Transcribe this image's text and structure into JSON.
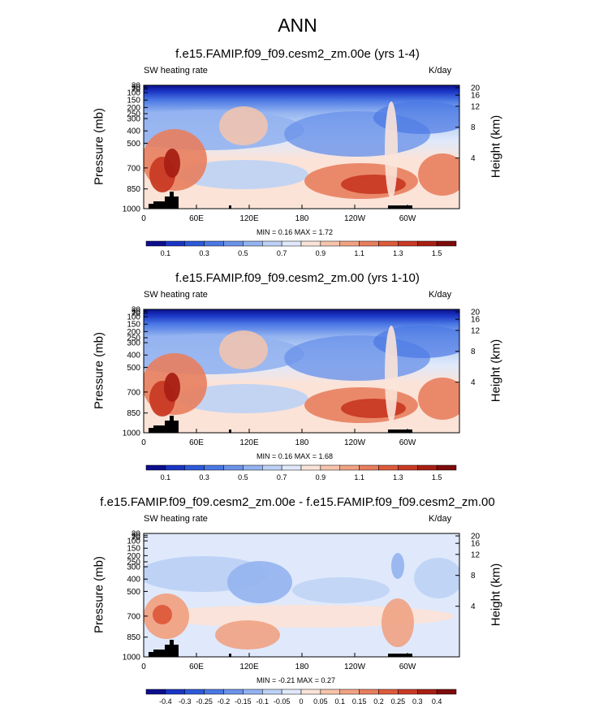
{
  "main_title": "ANN",
  "chart_data": [
    {
      "type": "heatmap",
      "title": "f.e15.FAMIP.f09_f09.cesm2_zm.00e (yrs 1-4)",
      "left_label": "SW heating rate",
      "right_label": "K/day",
      "ylabel": "Pressure (mb)",
      "ylabel_right": "Height (km)",
      "x_ticks": [
        "0",
        "60E",
        "120E",
        "180",
        "120W",
        "60W"
      ],
      "y_ticks": [
        "30",
        "50",
        "70",
        "100",
        "150",
        "200",
        "250",
        "300",
        "400",
        "500",
        "700",
        "850",
        "1000"
      ],
      "y_ticks_right": [
        "20",
        "16",
        "12",
        "8",
        "4"
      ],
      "min_text": "MIN =   0.16  MAX =   1.72",
      "colorbar_labels": [
        "0.1",
        "0.3",
        "0.5",
        "0.7",
        "0.9",
        "1.1",
        "1.3",
        "1.5"
      ],
      "colors": [
        "#0b0f8c",
        "#1a35c4",
        "#2c5ad8",
        "#4a78e4",
        "#6b93ea",
        "#93b3f0",
        "#bcd1f5",
        "#dfe9fb",
        "#fbe3d8",
        "#f6c4ab",
        "#f0a283",
        "#e87e5e",
        "#de5a3c",
        "#c93a24",
        "#a81f14",
        "#7e0b0b"
      ]
    },
    {
      "type": "heatmap",
      "title": "f.e15.FAMIP.f09_f09.cesm2_zm.00 (yrs 1-10)",
      "left_label": "SW heating rate",
      "right_label": "K/day",
      "ylabel": "Pressure (mb)",
      "ylabel_right": "Height (km)",
      "x_ticks": [
        "0",
        "60E",
        "120E",
        "180",
        "120W",
        "60W"
      ],
      "y_ticks": [
        "30",
        "50",
        "70",
        "100",
        "150",
        "200",
        "250",
        "300",
        "400",
        "500",
        "700",
        "850",
        "1000"
      ],
      "y_ticks_right": [
        "20",
        "16",
        "12",
        "8",
        "4"
      ],
      "min_text": "MIN =   0.16  MAX =   1.68",
      "colorbar_labels": [
        "0.1",
        "0.3",
        "0.5",
        "0.7",
        "0.9",
        "1.1",
        "1.3",
        "1.5"
      ],
      "colors": [
        "#0b0f8c",
        "#1a35c4",
        "#2c5ad8",
        "#4a78e4",
        "#6b93ea",
        "#93b3f0",
        "#bcd1f5",
        "#dfe9fb",
        "#fbe3d8",
        "#f6c4ab",
        "#f0a283",
        "#e87e5e",
        "#de5a3c",
        "#c93a24",
        "#a81f14",
        "#7e0b0b"
      ]
    },
    {
      "type": "heatmap",
      "title": "f.e15.FAMIP.f09_f09.cesm2_zm.00e - f.e15.FAMIP.f09_f09.cesm2_zm.00",
      "left_label": "SW heating rate",
      "right_label": "K/day",
      "ylabel": "Pressure (mb)",
      "ylabel_right": "Height (km)",
      "x_ticks": [
        "0",
        "60E",
        "120E",
        "180",
        "120W",
        "60W"
      ],
      "y_ticks": [
        "30",
        "50",
        "70",
        "100",
        "150",
        "200",
        "250",
        "300",
        "400",
        "500",
        "700",
        "850",
        "1000"
      ],
      "y_ticks_right": [
        "20",
        "16",
        "12",
        "8",
        "4"
      ],
      "min_text": "MIN =  -0.21  MAX =   0.27",
      "colorbar_labels": [
        "-0.4",
        "-0.3",
        "-0.25",
        "-0.2",
        "-0.15",
        "-0.1",
        "-0.05",
        "0",
        "0.05",
        "0.1",
        "0.15",
        "0.2",
        "0.25",
        "0.3",
        "0.4"
      ],
      "colors": [
        "#0b0f8c",
        "#1a35c4",
        "#2c5ad8",
        "#4a78e4",
        "#6b93ea",
        "#93b3f0",
        "#bcd1f5",
        "#dfe9fb",
        "#fbe3d8",
        "#f6c4ab",
        "#f0a283",
        "#e87e5e",
        "#de5a3c",
        "#c93a24",
        "#a81f14",
        "#7e0b0b"
      ]
    }
  ]
}
